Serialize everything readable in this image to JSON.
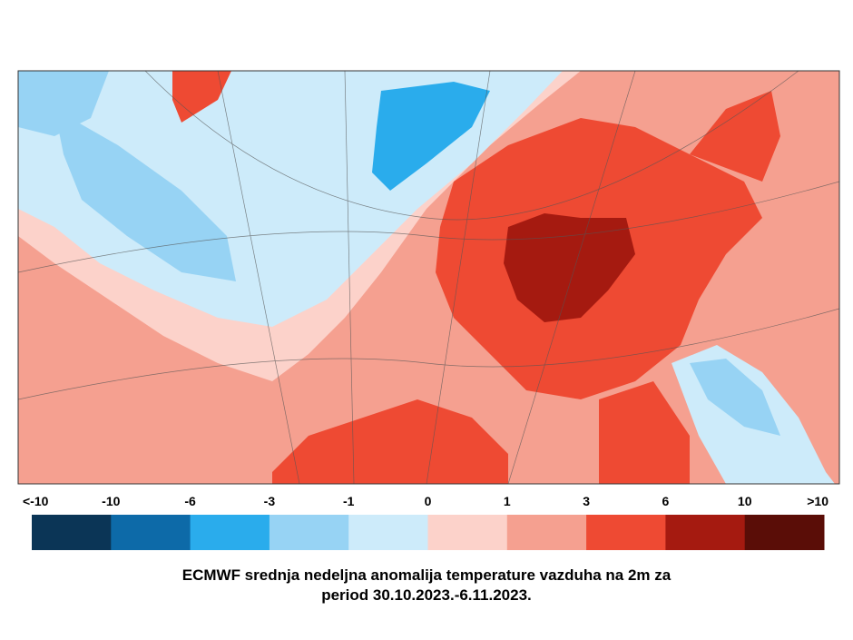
{
  "legend": {
    "labels": [
      "<-10",
      "-10",
      "-6",
      "-3",
      "-1",
      "0",
      "1",
      "3",
      "6",
      "10",
      ">10"
    ],
    "colors": [
      "#0b3556",
      "#0d6aa8",
      "#2aacec",
      "#97d3f4",
      "#cdebfa",
      "#fcd2ca",
      "#f5a090",
      "#ee4a33",
      "#a51a10",
      "#5a0d07"
    ]
  },
  "caption": {
    "lines": [
      "ECMWF srednja nedeljna anomalija temperature vazduha na 2m za",
      "period 30.10.2023.-6.11.2023."
    ]
  }
}
